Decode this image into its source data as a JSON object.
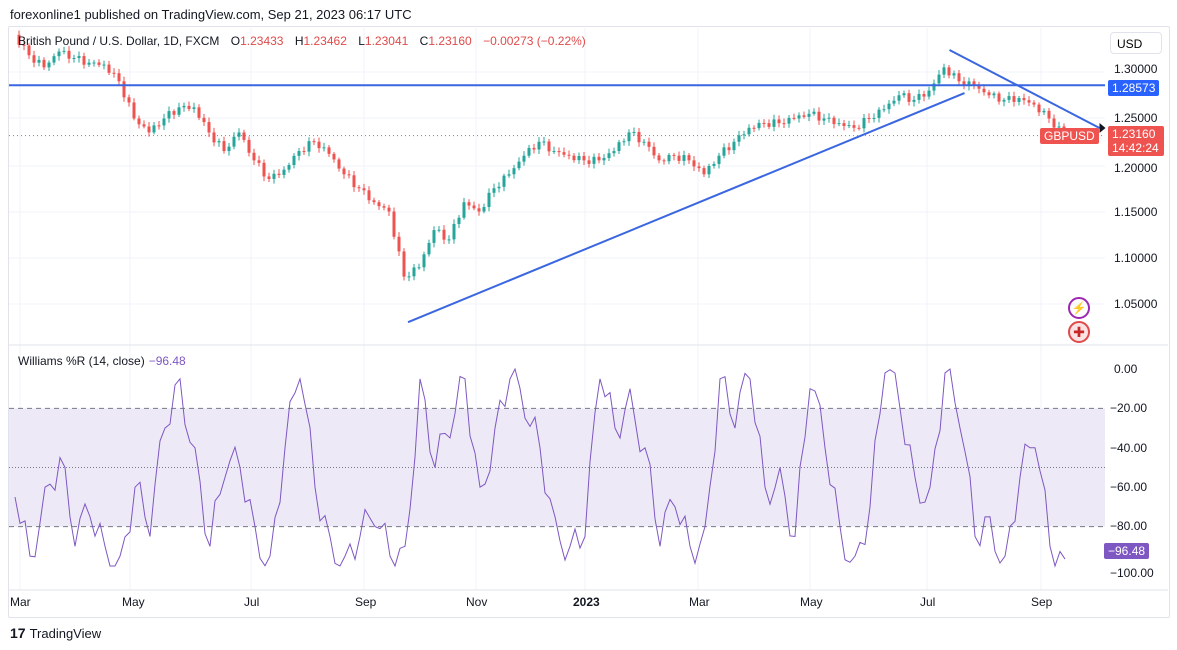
{
  "header": {
    "publisher": "forexonline1 published on TradingView.com, Sep 21, 2023 06:17 UTC"
  },
  "legend": {
    "symbol": "British Pound / U.S. Dollar, 1D, FXCM",
    "o_label": "O",
    "o": "1.23433",
    "h_label": "H",
    "h": "1.23462",
    "l_label": "L",
    "l": "1.23041",
    "c_label": "C",
    "c": "1.23160",
    "change": "−0.00273 (−0.22%)"
  },
  "price_scale": {
    "currency": "USD",
    "ticks": [
      "1.30000",
      "1.25000",
      "1.20000",
      "1.15000",
      "1.10000",
      "1.05000"
    ],
    "hline_tag": "1.28573",
    "last_price": "1.23160",
    "countdown": "14:42:24",
    "symbol_tag": "GBPUSD"
  },
  "indicator": {
    "name": "Williams %R (14, close)",
    "value": "−96.48",
    "ticks": [
      "0.00",
      "−20.00",
      "−40.00",
      "−60.00",
      "−80.00",
      "−100.00"
    ],
    "value_tag": "−96.48"
  },
  "time_axis": [
    "Mar",
    "May",
    "Jul",
    "Sep",
    "Nov",
    "2023",
    "Mar",
    "May",
    "Jul",
    "Sep"
  ],
  "footer": {
    "brand": "TradingView"
  },
  "colors": {
    "up": "#26a69a",
    "down": "#ef5350",
    "line": "#3a66e0",
    "wr": "#7e57c2",
    "band": "#ede9f7"
  },
  "chart_data": {
    "type": "candlestick",
    "price_range": [
      1.0,
      1.35
    ],
    "closes": [
      1.34,
      1.318,
      1.305,
      1.322,
      1.315,
      1.31,
      1.308,
      1.29,
      1.25,
      1.235,
      1.25,
      1.262,
      1.262,
      1.235,
      1.215,
      1.235,
      1.205,
      1.185,
      1.195,
      1.215,
      1.225,
      1.212,
      1.19,
      1.175,
      1.16,
      1.15,
      1.08,
      1.09,
      1.13,
      1.12,
      1.16,
      1.15,
      1.175,
      1.19,
      1.21,
      1.225,
      1.215,
      1.21,
      1.205,
      1.205,
      1.215,
      1.235,
      1.225,
      1.205,
      1.21,
      1.205,
      1.19,
      1.21,
      1.225,
      1.24,
      1.245,
      1.245,
      1.25,
      1.255,
      1.25,
      1.245,
      1.24,
      1.25,
      1.26,
      1.275,
      1.27,
      1.28,
      1.305,
      1.29,
      1.285,
      1.275,
      1.27,
      1.272,
      1.265,
      1.25,
      1.2316
    ],
    "horizontal_line": 1.28573,
    "trendlines": [
      {
        "from": [
          26.2,
          1.031
        ],
        "to": [
          63.3,
          1.2774
        ]
      },
      {
        "from": [
          62.3,
          1.3237
        ],
        "to": [
          72.3,
          1.2398
        ]
      }
    ],
    "williams_r": [
      -65,
      -95,
      -60,
      -45,
      -90,
      -75,
      -90,
      -95,
      -60,
      -85,
      -30,
      -5,
      -40,
      -90,
      -55,
      -50,
      -80,
      -95,
      -40,
      -5,
      -60,
      -85,
      -95,
      -85,
      -80,
      -95,
      -90,
      -5,
      -50,
      -35,
      -5,
      -60,
      -30,
      -5,
      -25,
      -40,
      -75,
      -90,
      -85,
      -5,
      -30,
      -10,
      -40,
      -90,
      -70,
      -90,
      -80,
      -5,
      -30,
      -5,
      -60,
      -50,
      -85,
      -10,
      -40,
      -80,
      -95,
      -70,
      -2,
      -20,
      -55,
      -60,
      -2,
      -30,
      -85,
      -75,
      -95,
      -55,
      -40,
      -90,
      -96.48
    ],
    "wr_levels": [
      -20,
      -50,
      -80
    ],
    "wr_range": [
      -100,
      0
    ]
  }
}
